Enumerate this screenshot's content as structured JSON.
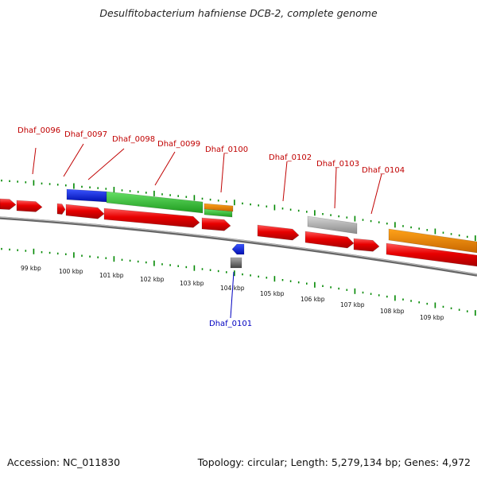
{
  "header": {
    "title": "Desulfitobacterium hafniense DCB-2, complete genome"
  },
  "footer": {
    "accession": "Accession: NC_011830",
    "summary": "Topology: circular; Length: 5,279,134 bp; Genes: 4,972"
  },
  "scale": {
    "labels": [
      "99 kbp",
      "100 kbp",
      "101 kbp",
      "102 kbp",
      "103 kbp",
      "104 kbp",
      "105 kbp",
      "106 kbp",
      "107 kbp",
      "108 kbp",
      "109 kbp"
    ]
  },
  "gene_labels": [
    {
      "text": "Dhaf_0096",
      "color": "#c00000"
    },
    {
      "text": "Dhaf_0097",
      "color": "#c00000"
    },
    {
      "text": "Dhaf_0098",
      "color": "#c00000"
    },
    {
      "text": "Dhaf_0099",
      "color": "#c00000"
    },
    {
      "text": "Dhaf_0100",
      "color": "#c00000"
    },
    {
      "text": "Dhaf_0102",
      "color": "#c00000"
    },
    {
      "text": "Dhaf_0103",
      "color": "#c00000"
    },
    {
      "text": "Dhaf_0104",
      "color": "#c00000"
    },
    {
      "text": "Dhaf_0101",
      "color": "#0000c0"
    }
  ],
  "colors": {
    "cds": "#e80000",
    "blue_feature": "#0a22dd",
    "green_feature": "#33c033",
    "orange_feature": "#f08800",
    "grey_feature": "#bbbbbb",
    "backbone": "#888888",
    "tick": "#008800"
  }
}
